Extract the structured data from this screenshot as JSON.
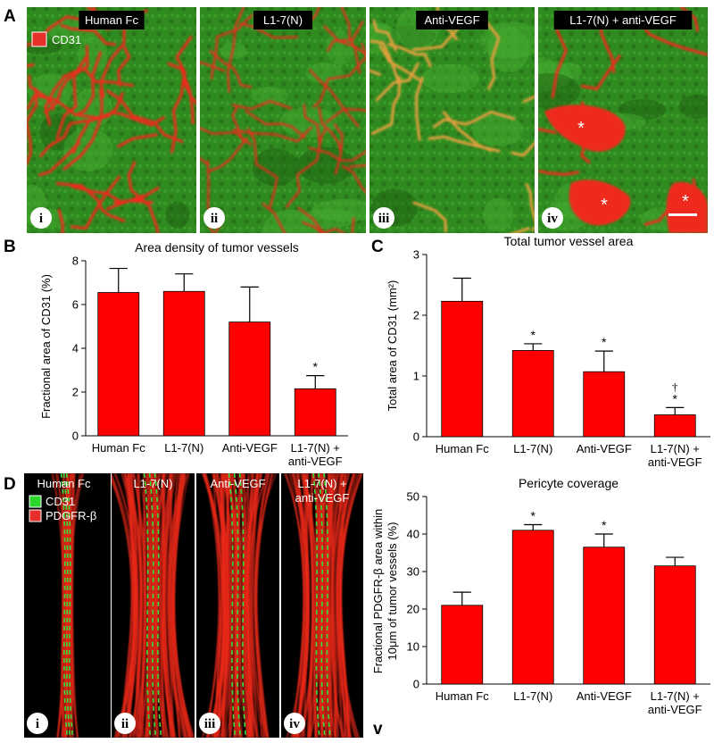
{
  "figure": {
    "panel_labels": {
      "A": "A",
      "B": "B",
      "C": "C",
      "D": "D",
      "v": "v"
    },
    "panel_a": {
      "legend": {
        "label": "CD31",
        "color": "#e8302a"
      },
      "images": [
        {
          "title": "Human Fc",
          "numeral": "i",
          "stars": []
        },
        {
          "title": "L1-7(N)",
          "numeral": "ii",
          "stars": []
        },
        {
          "title": "Anti-VEGF",
          "numeral": "iii",
          "stars": []
        },
        {
          "title": "L1-7(N) + anti-VEGF",
          "numeral": "iv",
          "stars": [
            "*",
            "*",
            "*"
          ]
        }
      ]
    },
    "panel_d": {
      "legend": [
        {
          "label": "CD31",
          "color": "#2bd62b"
        },
        {
          "label": "PDGFR-β",
          "color": "#e8302a"
        }
      ],
      "images": [
        {
          "title": "Human Fc",
          "numeral": "i"
        },
        {
          "title": "L1-7(N)",
          "numeral": "ii"
        },
        {
          "title": "Anti-VEGF",
          "numeral": "iii"
        },
        {
          "title_lines": [
            "L1-7(N) +",
            "anti-VEGF"
          ],
          "numeral": "iv"
        }
      ]
    },
    "colors": {
      "bar": "#ff0000",
      "tissue_green": "#2f8a1f",
      "vessel_red": "#ee2a1a"
    }
  },
  "chart_data": [
    {
      "type": "bar",
      "title": "Area density of tumor vessels",
      "xlabel": "",
      "ylabel": "Fractional area of CD31 (%)",
      "ylim": [
        0,
        8
      ],
      "yticks": [
        0,
        2,
        4,
        6,
        8
      ],
      "categories": [
        [
          "Human Fc"
        ],
        [
          "L1-7(N)"
        ],
        [
          "Anti-VEGF"
        ],
        [
          "L1-7(N) +",
          "anti-VEGF"
        ]
      ],
      "values": [
        6.55,
        6.6,
        5.2,
        2.15
      ],
      "errors": [
        1.1,
        0.8,
        1.6,
        0.6
      ],
      "markers": [
        "",
        "",
        "",
        "*"
      ]
    },
    {
      "type": "bar",
      "title": "Total tumor vessel area",
      "xlabel": "",
      "ylabel": "Total area of CD31 (mm²)",
      "ylim": [
        0,
        3
      ],
      "yticks": [
        0,
        1,
        2,
        3
      ],
      "categories": [
        [
          "Human Fc"
        ],
        [
          "L1-7(N)"
        ],
        [
          "Anti-VEGF"
        ],
        [
          "L1-7(N) +",
          "anti-VEGF"
        ]
      ],
      "values": [
        2.23,
        1.42,
        1.07,
        0.36
      ],
      "errors": [
        0.38,
        0.11,
        0.34,
        0.12
      ],
      "markers": [
        "",
        "*",
        "*",
        "*"
      ],
      "markers2": [
        "",
        "",
        "",
        "†"
      ]
    },
    {
      "type": "bar",
      "title": "Pericyte coverage",
      "xlabel": "",
      "ylabel": "Fractional PDGFR-β area within 10μm of tumor vessels (%)",
      "ylabel_lines": [
        "Fractional PDGFR-β area within",
        "10μm of tumor vessels (%)"
      ],
      "ylim": [
        0,
        50
      ],
      "yticks": [
        0,
        10,
        20,
        30,
        40,
        50
      ],
      "categories": [
        [
          "Human Fc"
        ],
        [
          "L1-7(N)"
        ],
        [
          "Anti-VEGF"
        ],
        [
          "L1-7(N) +",
          "anti-VEGF"
        ]
      ],
      "values": [
        21,
        41,
        36.5,
        31.5
      ],
      "errors": [
        3.5,
        1.5,
        3.5,
        2.3
      ],
      "markers": [
        "",
        "*",
        "*",
        ""
      ]
    }
  ]
}
